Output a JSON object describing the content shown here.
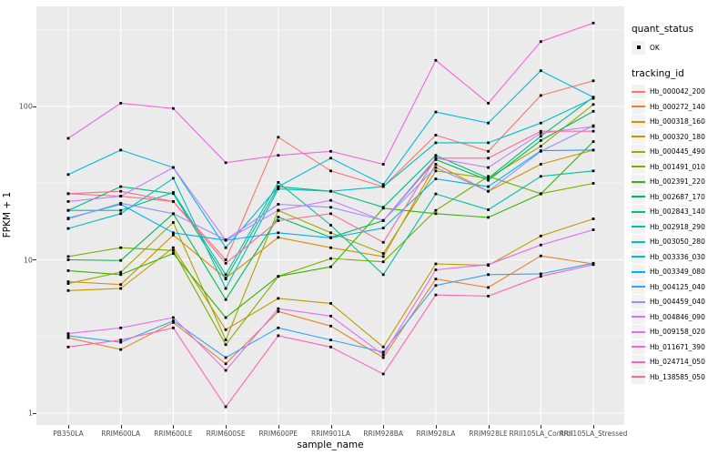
{
  "figure": {
    "xlabel": "sample_name",
    "ylabel": "FPKM + 1"
  },
  "legend": {
    "quant_status_title": "quant_status",
    "quant_status_items": [
      {
        "label": "OK"
      }
    ],
    "tracking_id_title": "tracking_id"
  },
  "chart_data": {
    "type": "line",
    "x_type": "categorical",
    "y_scale": "log10",
    "title": "",
    "xlabel": "sample_name",
    "ylabel": "FPKM + 1",
    "yticks": [
      1,
      10,
      100
    ],
    "ylim": [
      1,
      450
    ],
    "grid": "white major and minor gridlines on gray panel",
    "panel_bg": "#EBEBEB",
    "point_color": "#000000",
    "legend_position": "right",
    "categories": [
      "PB350LA",
      "RRIM600LA",
      "RRIM600LE",
      "RRIM600SE",
      "RRIM600PE",
      "RRIM901LA",
      "RRIM928BA",
      "RRIM928LA",
      "RRIM928LE",
      "RRII105LA_Control",
      "RRII105LA_Stressed"
    ],
    "series": [
      {
        "name": "Hb_000042_200",
        "color": "#F8766D",
        "values": [
          27,
          26,
          24,
          10,
          63,
          38,
          30,
          65,
          51,
          118,
          147
        ]
      },
      {
        "name": "Hb_000272_140",
        "color": "#EA8331",
        "values": [
          3.1,
          2.6,
          3.9,
          2.1,
          4.6,
          3.7,
          2.3,
          7.5,
          6.6,
          10.6,
          9.4
        ]
      },
      {
        "name": "Hb_000318_160",
        "color": "#D89000",
        "values": [
          7.2,
          6.9,
          14.5,
          7.6,
          14,
          12,
          10.5,
          42,
          28,
          42,
          52
        ]
      },
      {
        "name": "Hb_000320_180",
        "color": "#C09B00",
        "values": [
          6.3,
          6.5,
          12,
          3.5,
          5.6,
          5.2,
          2.7,
          9.4,
          9.2,
          14.3,
          18.5
        ]
      },
      {
        "name": "Hb_000445_490",
        "color": "#A3A500",
        "values": [
          7.0,
          8.3,
          17.5,
          3.0,
          21,
          15,
          11,
          38,
          34,
          55,
          103
        ]
      },
      {
        "name": "Hb_001491_010",
        "color": "#7CAE00",
        "values": [
          10.5,
          12,
          11.5,
          2.8,
          7.8,
          10.2,
          9.7,
          21,
          35,
          27,
          31.5
        ]
      },
      {
        "name": "Hb_002391_220",
        "color": "#39B600",
        "values": [
          8.5,
          8.0,
          11,
          4.2,
          7.8,
          9.0,
          21.7,
          20,
          18.9,
          26.9,
          59
        ]
      },
      {
        "name": "Hb_002687_170",
        "color": "#00BB4E",
        "values": [
          10,
          9.9,
          20,
          5.5,
          19,
          14,
          18,
          45,
          33,
          60,
          93
        ]
      },
      {
        "name": "Hb_002843_140",
        "color": "#00BF7D",
        "values": [
          21,
          30,
          27,
          7.5,
          30,
          28,
          22,
          48,
          34,
          64,
          115
        ]
      },
      {
        "name": "Hb_002918_290",
        "color": "#00C1A3",
        "values": [
          21,
          21,
          27.5,
          8.0,
          32,
          16.8,
          8.0,
          26.9,
          21.2,
          35,
          38
        ]
      },
      {
        "name": "Hb_003050_280",
        "color": "#00BFC4",
        "values": [
          16,
          20,
          34,
          6.5,
          29,
          28,
          30,
          58,
          58,
          78,
          113
        ]
      },
      {
        "name": "Hb_003336_030",
        "color": "#00BAE0",
        "values": [
          36,
          52,
          40,
          12,
          30,
          46,
          31,
          92,
          78,
          171,
          115
        ]
      },
      {
        "name": "Hb_003349_080",
        "color": "#00B0F6",
        "values": [
          18.7,
          23,
          15,
          13.4,
          15,
          13.9,
          16.1,
          33.7,
          30,
          51.5,
          52
        ]
      },
      {
        "name": "Hb_004125_040",
        "color": "#35A2FF",
        "values": [
          3.2,
          2.9,
          4.0,
          2.3,
          3.6,
          3.0,
          2.5,
          6.8,
          8.0,
          8.1,
          9.5
        ]
      },
      {
        "name": "Hb_004459_040",
        "color": "#9590FF",
        "values": [
          18.5,
          23.4,
          20,
          13.5,
          23,
          22,
          18.1,
          40,
          28,
          51,
          75
        ]
      },
      {
        "name": "Hb_004846_090",
        "color": "#C77CFF",
        "values": [
          24,
          26,
          40,
          13.4,
          21,
          24.4,
          18,
          46,
          40,
          67,
          74
        ]
      },
      {
        "name": "Hb_009158_020",
        "color": "#E76BF3",
        "values": [
          3.3,
          3.6,
          4.2,
          1.9,
          4.8,
          4.3,
          2.4,
          8.6,
          9.3,
          12.5,
          15.7
        ]
      },
      {
        "name": "Hb_011671_390",
        "color": "#FA62DB",
        "values": [
          62,
          105,
          97,
          43,
          48,
          51,
          42,
          200,
          105,
          265,
          350
        ]
      },
      {
        "name": "Hb_024714_050",
        "color": "#FF62BC",
        "values": [
          2.7,
          3.0,
          3.6,
          1.1,
          3.2,
          2.7,
          1.8,
          5.9,
          5.8,
          7.8,
          9.3
        ]
      },
      {
        "name": "Hb_138585_050",
        "color": "#FF6A98",
        "values": [
          27,
          28,
          24,
          9.5,
          18,
          20,
          13,
          46,
          46,
          69,
          69
        ]
      }
    ]
  }
}
